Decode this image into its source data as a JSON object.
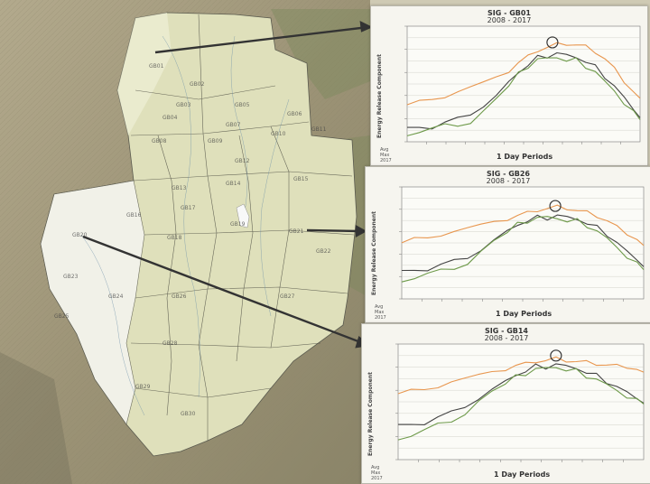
{
  "map": {
    "subbasins": [
      "GB01",
      "GB02",
      "GB03",
      "GB04",
      "GB05",
      "GB06",
      "GB07",
      "GB08",
      "GB09",
      "GB10",
      "GB11",
      "GB12",
      "GB13",
      "GB14",
      "GB15",
      "GB16",
      "GB17",
      "GB18",
      "GB19",
      "GB20",
      "GB21",
      "GB22",
      "GB23",
      "GB24",
      "GB25",
      "GB26",
      "GB27",
      "GB28",
      "GB29",
      "GB30"
    ],
    "colors": {
      "relief": "#a2977a",
      "basin": "#dfe0bb",
      "highlight": "#f5f5f0",
      "lines": "#3c3c3c",
      "arrow": "#333333"
    }
  },
  "panels": [
    {
      "title": "SIG - GB01",
      "years": "2008 - 2017",
      "ylabel": "Energy Release Component",
      "xlabel": "1 Day Periods",
      "legend": [
        "Avg",
        "Max",
        "2017"
      ],
      "chart_data": {
        "type": "line",
        "x_domain": [
          1,
          365
        ],
        "y_domain": [
          0,
          100
        ],
        "series": [
          {
            "color": "#e8964e",
            "points": [
              [
                1,
                30
              ],
              [
                20,
                33
              ],
              [
                40,
                37
              ],
              [
                60,
                40
              ],
              [
                80,
                43
              ],
              [
                100,
                47
              ],
              [
                120,
                51
              ],
              [
                140,
                56
              ],
              [
                160,
                62
              ],
              [
                175,
                68
              ],
              [
                190,
                74
              ],
              [
                205,
                79
              ],
              [
                220,
                82
              ],
              [
                235,
                84
              ],
              [
                250,
                85
              ],
              [
                265,
                84
              ],
              [
                280,
                82
              ],
              [
                295,
                78
              ],
              [
                310,
                72
              ],
              [
                325,
                63
              ],
              [
                340,
                52
              ],
              [
                355,
                44
              ],
              [
                365,
                40
              ]
            ]
          },
          {
            "color": "#444444",
            "points": [
              [
                1,
                12
              ],
              [
                20,
                13
              ],
              [
                40,
                14
              ],
              [
                60,
                16
              ],
              [
                80,
                19
              ],
              [
                100,
                24
              ],
              [
                120,
                31
              ],
              [
                140,
                40
              ],
              [
                160,
                52
              ],
              [
                175,
                60
              ],
              [
                190,
                67
              ],
              [
                205,
                72
              ],
              [
                220,
                75
              ],
              [
                235,
                76
              ],
              [
                250,
                75
              ],
              [
                265,
                73
              ],
              [
                280,
                70
              ],
              [
                295,
                64
              ],
              [
                310,
                57
              ],
              [
                325,
                48
              ],
              [
                340,
                38
              ],
              [
                355,
                28
              ],
              [
                365,
                22
              ]
            ]
          },
          {
            "color": "#6e9a4a",
            "points": [
              [
                1,
                8
              ],
              [
                20,
                10
              ],
              [
                40,
                11
              ],
              [
                60,
                13
              ],
              [
                80,
                15
              ],
              [
                100,
                18
              ],
              [
                120,
                25
              ],
              [
                140,
                36
              ],
              [
                160,
                49
              ],
              [
                175,
                58
              ],
              [
                190,
                66
              ],
              [
                205,
                71
              ],
              [
                220,
                72
              ],
              [
                235,
                73
              ],
              [
                250,
                71
              ],
              [
                265,
                70
              ],
              [
                280,
                66
              ],
              [
                295,
                60
              ],
              [
                310,
                52
              ],
              [
                325,
                44
              ],
              [
                340,
                34
              ],
              [
                355,
                24
              ],
              [
                365,
                18
              ]
            ]
          }
        ],
        "marker": {
          "x": 228,
          "y": 86
        }
      }
    },
    {
      "title": "SIG - GB26",
      "years": "2008 - 2017",
      "ylabel": "Energy Release Component",
      "xlabel": "1 Day Periods",
      "legend": [
        "Avg",
        "Max",
        "2017"
      ],
      "chart_data": {
        "type": "line",
        "x_domain": [
          1,
          365
        ],
        "y_domain": [
          0,
          100
        ],
        "series": [
          {
            "color": "#e8964e",
            "points": [
              [
                1,
                48
              ],
              [
                20,
                52
              ],
              [
                40,
                55
              ],
              [
                60,
                58
              ],
              [
                80,
                60
              ],
              [
                100,
                63
              ],
              [
                120,
                66
              ],
              [
                140,
                69
              ],
              [
                160,
                72
              ],
              [
                175,
                74
              ],
              [
                190,
                77
              ],
              [
                205,
                79
              ],
              [
                220,
                81
              ],
              [
                235,
                82
              ],
              [
                250,
                81
              ],
              [
                265,
                79
              ],
              [
                280,
                77
              ],
              [
                295,
                74
              ],
              [
                310,
                70
              ],
              [
                325,
                64
              ],
              [
                340,
                58
              ],
              [
                355,
                54
              ],
              [
                365,
                50
              ]
            ]
          },
          {
            "color": "#444444",
            "points": [
              [
                1,
                25
              ],
              [
                20,
                26
              ],
              [
                40,
                28
              ],
              [
                60,
                30
              ],
              [
                80,
                33
              ],
              [
                100,
                37
              ],
              [
                120,
                44
              ],
              [
                140,
                53
              ],
              [
                160,
                61
              ],
              [
                175,
                66
              ],
              [
                190,
                70
              ],
              [
                205,
                72
              ],
              [
                220,
                73
              ],
              [
                235,
                74
              ],
              [
                250,
                73
              ],
              [
                265,
                71
              ],
              [
                280,
                68
              ],
              [
                295,
                63
              ],
              [
                310,
                58
              ],
              [
                325,
                50
              ],
              [
                340,
                42
              ],
              [
                355,
                35
              ],
              [
                365,
                30
              ]
            ]
          },
          {
            "color": "#6e9a4a",
            "points": [
              [
                1,
                18
              ],
              [
                20,
                20
              ],
              [
                40,
                22
              ],
              [
                60,
                24
              ],
              [
                80,
                28
              ],
              [
                100,
                33
              ],
              [
                120,
                41
              ],
              [
                140,
                51
              ],
              [
                160,
                60
              ],
              [
                175,
                66
              ],
              [
                190,
                70
              ],
              [
                205,
                72
              ],
              [
                220,
                73
              ],
              [
                235,
                72
              ],
              [
                250,
                70
              ],
              [
                265,
                69
              ],
              [
                280,
                66
              ],
              [
                295,
                60
              ],
              [
                310,
                54
              ],
              [
                325,
                46
              ],
              [
                340,
                38
              ],
              [
                355,
                30
              ],
              [
                365,
                25
              ]
            ]
          }
        ],
        "marker": {
          "x": 232,
          "y": 83
        }
      }
    },
    {
      "title": "SIG - GB14",
      "years": "2008 - 2017",
      "ylabel": "Energy Release Component",
      "xlabel": "1 Day Periods",
      "legend": [
        "Avg",
        "Max",
        "2017"
      ],
      "chart_data": {
        "type": "line",
        "x_domain": [
          1,
          365
        ],
        "y_domain": [
          0,
          100
        ],
        "series": [
          {
            "color": "#e8964e",
            "points": [
              [
                1,
                55
              ],
              [
                20,
                58
              ],
              [
                40,
                61
              ],
              [
                60,
                64
              ],
              [
                80,
                67
              ],
              [
                100,
                70
              ],
              [
                120,
                73
              ],
              [
                140,
                76
              ],
              [
                160,
                79
              ],
              [
                175,
                81
              ],
              [
                190,
                83
              ],
              [
                205,
                85
              ],
              [
                220,
                86
              ],
              [
                235,
                87
              ],
              [
                250,
                86
              ],
              [
                265,
                85
              ],
              [
                280,
                84
              ],
              [
                295,
                83
              ],
              [
                310,
                82
              ],
              [
                325,
                81
              ],
              [
                340,
                80
              ],
              [
                355,
                79
              ],
              [
                365,
                78
              ]
            ]
          },
          {
            "color": "#444444",
            "points": [
              [
                1,
                30
              ],
              [
                20,
                31
              ],
              [
                40,
                33
              ],
              [
                60,
                36
              ],
              [
                80,
                40
              ],
              [
                100,
                46
              ],
              [
                120,
                53
              ],
              [
                140,
                61
              ],
              [
                160,
                68
              ],
              [
                175,
                73
              ],
              [
                190,
                77
              ],
              [
                205,
                80
              ],
              [
                220,
                81
              ],
              [
                235,
                82
              ],
              [
                250,
                81
              ],
              [
                265,
                79
              ],
              [
                280,
                76
              ],
              [
                295,
                72
              ],
              [
                310,
                68
              ],
              [
                325,
                63
              ],
              [
                340,
                58
              ],
              [
                355,
                53
              ],
              [
                365,
                50
              ]
            ]
          },
          {
            "color": "#6e9a4a",
            "points": [
              [
                1,
                20
              ],
              [
                20,
                22
              ],
              [
                40,
                25
              ],
              [
                60,
                29
              ],
              [
                80,
                34
              ],
              [
                100,
                41
              ],
              [
                120,
                49
              ],
              [
                140,
                58
              ],
              [
                160,
                66
              ],
              [
                175,
                71
              ],
              [
                190,
                75
              ],
              [
                205,
                78
              ],
              [
                220,
                79
              ],
              [
                235,
                80
              ],
              [
                250,
                78
              ],
              [
                265,
                76
              ],
              [
                280,
                73
              ],
              [
                295,
                69
              ],
              [
                310,
                65
              ],
              [
                325,
                60
              ],
              [
                340,
                55
              ],
              [
                355,
                50
              ],
              [
                365,
                47
              ]
            ]
          }
        ],
        "marker": {
          "x": 235,
          "y": 90
        }
      }
    }
  ]
}
